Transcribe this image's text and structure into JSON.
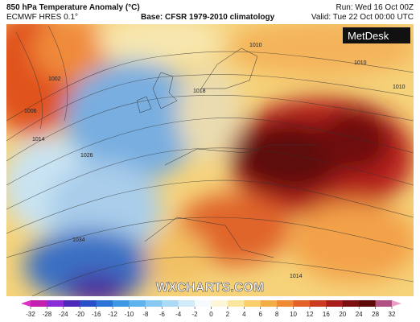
{
  "header": {
    "title": "850 hPa Temperature Anomaly (°C)",
    "model": "ECMWF HRES 0.1°",
    "base": "Base: CFSR 1979-2010 climatology",
    "run": "Run: Wed 16 Oct 00Z",
    "valid": "Valid: Tue 22 Oct 00:00 UTC"
  },
  "map": {
    "logo": "MetDesk",
    "watermark": "WXCHARTS.COM",
    "isobar_labels": [
      "1010",
      "1026",
      "1014",
      "1002",
      "1006",
      "1010",
      "1034",
      "1014",
      "1018",
      "1010"
    ]
  },
  "colorbar": {
    "ticks": [
      -32,
      -28,
      -24,
      -20,
      -16,
      -12,
      -10,
      -8,
      -6,
      -4,
      -2,
      0,
      2,
      4,
      6,
      8,
      10,
      12,
      16,
      20,
      24,
      28,
      32
    ]
  }
}
